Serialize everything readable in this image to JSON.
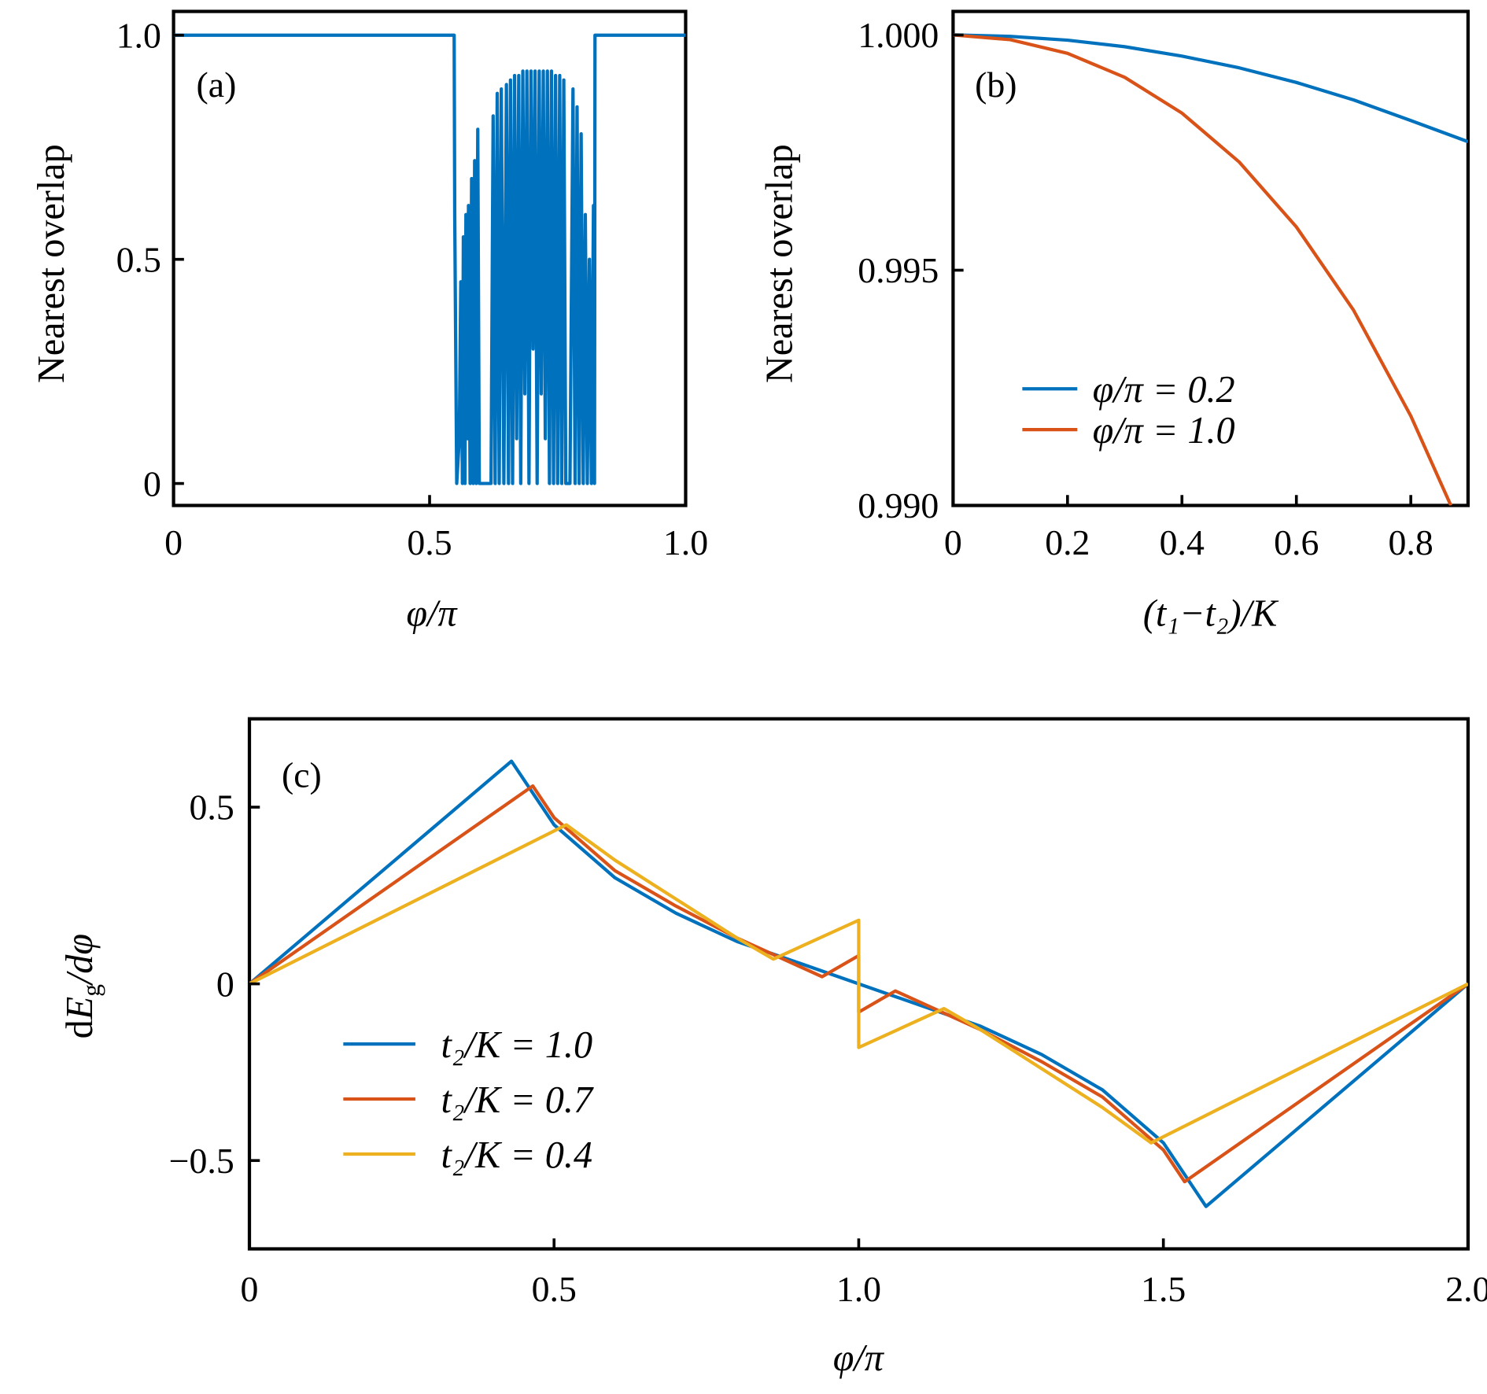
{
  "colors": {
    "blue": "#0072BD",
    "red": "#D95319",
    "yellow": "#EDB120"
  },
  "chart_data": [
    {
      "panel_label": "(a)",
      "type": "line",
      "xlabel": "φ/π",
      "ylabel": "Nearest overlap",
      "xlim": [
        0,
        1.0
      ],
      "ylim": [
        -0.049,
        1.053
      ],
      "xticks": [
        {
          "v": 0,
          "label": "0"
        },
        {
          "v": 0.5,
          "label": "0.5"
        },
        {
          "v": 1.0,
          "label": "1.0"
        }
      ],
      "yticks": [
        {
          "v": 0,
          "label": "0"
        },
        {
          "v": 0.5,
          "label": "0.5"
        },
        {
          "v": 1.0,
          "label": "1.0"
        }
      ],
      "grid": false,
      "series": [
        {
          "color": "#0072BD",
          "x": [
            0,
            0.548,
            0.549,
            0.553,
            0.558,
            0.561,
            0.564,
            0.566,
            0.569,
            0.571,
            0.574,
            0.576,
            0.579,
            0.582,
            0.585,
            0.588,
            0.591,
            0.594,
            0.597,
            0.6,
            0.62,
            0.624,
            0.628,
            0.632,
            0.636,
            0.64,
            0.645,
            0.65,
            0.654,
            0.658,
            0.662,
            0.666,
            0.67,
            0.674,
            0.678,
            0.682,
            0.686,
            0.69,
            0.694,
            0.698,
            0.702,
            0.706,
            0.71,
            0.714,
            0.718,
            0.722,
            0.726,
            0.73,
            0.734,
            0.738,
            0.742,
            0.746,
            0.75,
            0.754,
            0.758,
            0.762,
            0.766,
            0.77,
            0.774,
            0.78,
            0.784,
            0.788,
            0.792,
            0.796,
            0.8,
            0.804,
            0.808,
            0.812,
            0.816,
            0.82,
            0.822,
            0.823,
            1.0
          ],
          "y": [
            1.0,
            1.0,
            0.6,
            0.0,
            0.1,
            0.45,
            0.0,
            0.55,
            0.0,
            0.6,
            0.1,
            0.62,
            0.0,
            0.68,
            0.0,
            0.72,
            0.0,
            0.79,
            0.0,
            0.0,
            0.0,
            0.82,
            0.0,
            0.87,
            0.0,
            0.88,
            0.0,
            0.89,
            0.0,
            0.9,
            0.0,
            0.91,
            0.1,
            0.91,
            0.0,
            0.92,
            0.2,
            0.92,
            0.0,
            0.92,
            0.3,
            0.92,
            0.0,
            0.92,
            0.2,
            0.92,
            0.1,
            0.92,
            0.0,
            0.92,
            0.0,
            0.91,
            0.0,
            0.91,
            0.0,
            0.9,
            0.0,
            0.0,
            0.0,
            0.88,
            0.0,
            0.84,
            0.0,
            0.78,
            0.0,
            0.6,
            0.0,
            0.5,
            0.0,
            0.62,
            0.0,
            1.0,
            1.0
          ]
        }
      ]
    },
    {
      "panel_label": "(b)",
      "type": "line",
      "xlabel": "(t₁−t₂)/K",
      "ylabel": "Nearest overlap",
      "xlim": [
        0,
        0.9
      ],
      "ylim": [
        0.99,
        1.0005
      ],
      "xticks": [
        {
          "v": 0,
          "label": "0"
        },
        {
          "v": 0.2,
          "label": "0.2"
        },
        {
          "v": 0.4,
          "label": "0.4"
        },
        {
          "v": 0.6,
          "label": "0.6"
        },
        {
          "v": 0.8,
          "label": "0.8"
        }
      ],
      "yticks": [
        {
          "v": 0.99,
          "label": "0.990"
        },
        {
          "v": 0.995,
          "label": "0.995"
        },
        {
          "v": 1.0,
          "label": "1.000"
        }
      ],
      "grid": false,
      "legend": "center-bottom-left",
      "series": [
        {
          "name": "φ/π = 0.2",
          "color": "#0072BD",
          "x": [
            0,
            0.1,
            0.2,
            0.3,
            0.4,
            0.5,
            0.6,
            0.7,
            0.8,
            0.9
          ],
          "y": [
            1.0,
            0.99997,
            0.99989,
            0.99975,
            0.99955,
            0.9993,
            0.99899,
            0.99862,
            0.99818,
            0.99773
          ]
        },
        {
          "name": "φ/π = 1.0",
          "color": "#D95319",
          "x": [
            0,
            0.1,
            0.2,
            0.3,
            0.4,
            0.5,
            0.6,
            0.7,
            0.8,
            0.87
          ],
          "y": [
            1.0,
            0.9999,
            0.99961,
            0.9991,
            0.99834,
            0.9973,
            0.99592,
            0.99415,
            0.9919,
            0.99
          ]
        }
      ]
    },
    {
      "panel_label": "(c)",
      "type": "line",
      "xlabel": "φ/π",
      "ylabel": {
        "pre": "d",
        "main": "E",
        "sub": "g",
        "post": "/dφ"
      },
      "xlim": [
        0,
        2.0
      ],
      "ylim": [
        -0.75,
        0.75
      ],
      "xticks": [
        {
          "v": 0,
          "label": "0"
        },
        {
          "v": 0.5,
          "label": "0.5"
        },
        {
          "v": 1.0,
          "label": "1.0"
        },
        {
          "v": 1.5,
          "label": "1.5"
        },
        {
          "v": 2.0,
          "label": "2.0"
        }
      ],
      "yticks": [
        {
          "v": -0.5,
          "label": "−0.5"
        },
        {
          "v": 0,
          "label": "0"
        },
        {
          "v": 0.5,
          "label": "0.5"
        }
      ],
      "grid": false,
      "legend": "bottom-left",
      "series": [
        {
          "name": "t₂/K = 1.0",
          "color": "#0072BD",
          "x": [
            0,
            0.43,
            0.5,
            0.6,
            0.7,
            0.8,
            0.9,
            1.0,
            1.1,
            1.2,
            1.3,
            1.4,
            1.5,
            1.57,
            2.0
          ],
          "y": [
            0,
            0.63,
            0.45,
            0.3,
            0.2,
            0.12,
            0.06,
            0,
            -0.06,
            -0.12,
            -0.2,
            -0.3,
            -0.45,
            -0.63,
            0
          ]
        },
        {
          "name": "t₂/K = 0.7",
          "color": "#D95319",
          "x": [
            0,
            0.465,
            0.5,
            0.6,
            0.7,
            0.8,
            0.94,
            1.0,
            1.0,
            1.06,
            1.2,
            1.3,
            1.4,
            1.5,
            1.535,
            2.0
          ],
          "y": [
            0,
            0.56,
            0.47,
            0.32,
            0.22,
            0.13,
            0.02,
            0.08,
            -0.08,
            -0.02,
            -0.13,
            -0.22,
            -0.32,
            -0.47,
            -0.56,
            0
          ]
        },
        {
          "name": "t₂/K = 0.4",
          "color": "#EDB120",
          "x": [
            0,
            0.52,
            0.6,
            0.7,
            0.8,
            0.86,
            1.0,
            1.0,
            1.14,
            1.2,
            1.3,
            1.4,
            1.48,
            2.0
          ],
          "y": [
            0,
            0.45,
            0.35,
            0.24,
            0.13,
            0.07,
            0.18,
            -0.18,
            -0.07,
            -0.13,
            -0.24,
            -0.35,
            -0.45,
            0
          ]
        }
      ]
    }
  ]
}
